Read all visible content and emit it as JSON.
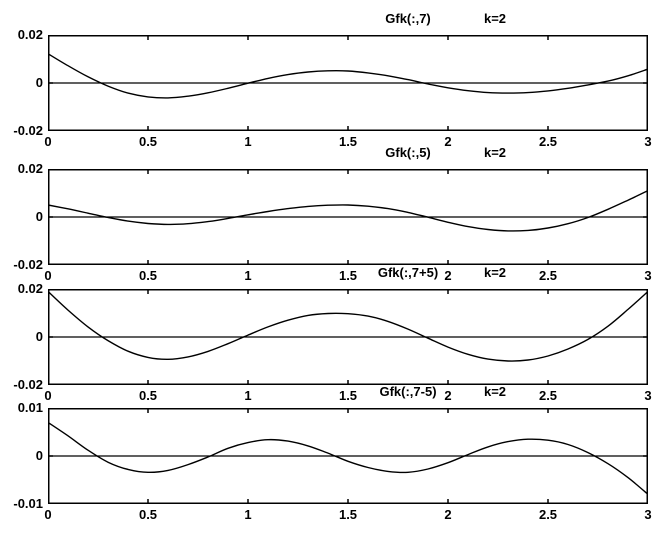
{
  "figure": {
    "background": "#ffffff",
    "axis_color": "#000000",
    "curve_color": "#000000"
  },
  "chart_data": [
    {
      "type": "line",
      "title": "Gfk(:,7)",
      "annotation": "k=2",
      "xlim": [
        0,
        3
      ],
      "ylim": [
        -0.02,
        0.02
      ],
      "x_ticks": [
        0,
        0.5,
        1,
        1.5,
        2,
        2.5,
        3
      ],
      "x_tick_labels": [
        "0",
        "0.5",
        "1",
        "1.5",
        "2",
        "2.5",
        "3"
      ],
      "y_ticks": [
        -0.02,
        0,
        0.02
      ],
      "y_tick_labels": [
        "-0.02",
        "0",
        "0.02"
      ],
      "grid": false,
      "zero_line": true,
      "x": [
        0,
        0.1,
        0.2,
        0.3,
        0.4,
        0.5,
        0.6,
        0.7,
        0.8,
        0.9,
        1,
        1.1,
        1.2,
        1.3,
        1.4,
        1.5,
        1.6,
        1.7,
        1.8,
        1.9,
        2,
        2.1,
        2.2,
        2.3,
        2.4,
        2.5,
        2.6,
        2.7,
        2.8,
        2.9,
        3
      ],
      "y": [
        0.0122,
        0.0072,
        0.0026,
        -0.0013,
        -0.0042,
        -0.0058,
        -0.0062,
        -0.0055,
        -0.0041,
        -0.0022,
        -0.0001,
        0.0019,
        0.0035,
        0.0046,
        0.0051,
        0.005,
        0.0042,
        0.003,
        0.0014,
        -0.0004,
        -0.002,
        -0.0032,
        -0.004,
        -0.0042,
        -0.004,
        -0.0033,
        -0.0022,
        -0.0008,
        0.0008,
        0.003,
        0.0058
      ]
    },
    {
      "type": "line",
      "title": "Gfk(:,5)",
      "annotation": "k=2",
      "xlim": [
        0,
        3
      ],
      "ylim": [
        -0.02,
        0.02
      ],
      "x_ticks": [
        0,
        0.5,
        1,
        1.5,
        2,
        2.5,
        3
      ],
      "x_tick_labels": [
        "0",
        "0.5",
        "1",
        "1.5",
        "2",
        "2.5",
        "3"
      ],
      "y_ticks": [
        -0.02,
        0,
        0.02
      ],
      "y_tick_labels": [
        "-0.02",
        "0",
        "0.02"
      ],
      "grid": false,
      "zero_line": true,
      "x": [
        0,
        0.1,
        0.2,
        0.3,
        0.4,
        0.5,
        0.6,
        0.7,
        0.8,
        0.9,
        1,
        1.1,
        1.2,
        1.3,
        1.4,
        1.5,
        1.6,
        1.7,
        1.8,
        1.9,
        2,
        2.1,
        2.2,
        2.3,
        2.4,
        2.5,
        2.6,
        2.7,
        2.8,
        2.9,
        3
      ],
      "y": [
        0.005,
        0.0034,
        0.0016,
        -0.0002,
        -0.0017,
        -0.0027,
        -0.0031,
        -0.0028,
        -0.0019,
        -0.0006,
        0.0009,
        0.0023,
        0.0035,
        0.0044,
        0.0049,
        0.005,
        0.0045,
        0.0035,
        0.0019,
        -0.0001,
        -0.0022,
        -0.004,
        -0.0052,
        -0.0058,
        -0.0056,
        -0.0046,
        -0.0028,
        -0.0002,
        0.0032,
        0.007,
        0.011
      ]
    },
    {
      "type": "line",
      "title": "Gfk(:,7+5)",
      "annotation": "k=2",
      "xlim": [
        0,
        3
      ],
      "ylim": [
        -0.02,
        0.02
      ],
      "x_ticks": [
        0,
        0.5,
        1,
        1.5,
        2,
        2.5,
        3
      ],
      "x_tick_labels": [
        "0",
        "0.5",
        "1",
        "1.5",
        "2",
        "2.5",
        "3"
      ],
      "y_ticks": [
        -0.02,
        0,
        0.02
      ],
      "y_tick_labels": [
        "-0.02",
        "0",
        "0.02"
      ],
      "grid": false,
      "zero_line": true,
      "x": [
        0,
        0.1,
        0.2,
        0.3,
        0.4,
        0.5,
        0.6,
        0.7,
        0.8,
        0.9,
        1,
        1.1,
        1.2,
        1.3,
        1.4,
        1.5,
        1.6,
        1.7,
        1.8,
        1.9,
        2,
        2.1,
        2.2,
        2.3,
        2.4,
        2.5,
        2.6,
        2.7,
        2.8,
        2.9,
        3
      ],
      "y": [
        0.019,
        0.0112,
        0.0042,
        -0.0015,
        -0.0059,
        -0.0085,
        -0.0093,
        -0.0083,
        -0.006,
        -0.0028,
        0.0008,
        0.0042,
        0.007,
        0.009,
        0.0098,
        0.0097,
        0.0087,
        0.0065,
        0.0033,
        -0.0005,
        -0.0042,
        -0.0072,
        -0.0092,
        -0.01,
        -0.0096,
        -0.0079,
        -0.005,
        -0.001,
        0.0045,
        0.0115,
        0.019
      ]
    },
    {
      "type": "line",
      "title": "Gfk(:,7-5)",
      "annotation": "k=2",
      "xlim": [
        0,
        3
      ],
      "ylim": [
        -0.01,
        0.01
      ],
      "x_ticks": [
        0,
        0.5,
        1,
        1.5,
        2,
        2.5,
        3
      ],
      "x_tick_labels": [
        "0",
        "0.5",
        "1",
        "1.5",
        "2",
        "2.5",
        "3"
      ],
      "y_ticks": [
        -0.01,
        0,
        0.01
      ],
      "y_tick_labels": [
        "-0.01",
        "0",
        "0.01"
      ],
      "grid": false,
      "zero_line": true,
      "x": [
        0,
        0.1,
        0.2,
        0.3,
        0.4,
        0.5,
        0.6,
        0.7,
        0.8,
        0.9,
        1,
        1.1,
        1.2,
        1.3,
        1.4,
        1.5,
        1.6,
        1.7,
        1.8,
        1.9,
        2,
        2.1,
        2.2,
        2.3,
        2.4,
        2.5,
        2.6,
        2.7,
        2.8,
        2.9,
        3
      ],
      "y": [
        0.007,
        0.0042,
        0.0012,
        -0.0013,
        -0.0028,
        -0.0034,
        -0.003,
        -0.0018,
        -0.0002,
        0.0016,
        0.0028,
        0.0034,
        0.0031,
        0.0021,
        0.0006,
        -0.0011,
        -0.0024,
        -0.0032,
        -0.0034,
        -0.0027,
        -0.0014,
        0.0003,
        0.0019,
        0.003,
        0.0035,
        0.0033,
        0.0024,
        0.0007,
        -0.0016,
        -0.0045,
        -0.008
      ]
    }
  ]
}
